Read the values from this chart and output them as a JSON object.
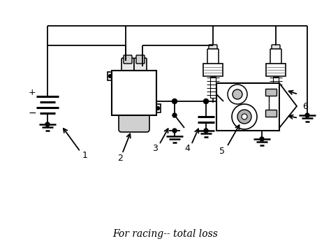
{
  "title": "For racing-- total loss",
  "title_fontsize": 10,
  "bg_color": "#ffffff",
  "line_color": "#000000",
  "fig_width": 4.74,
  "fig_height": 3.55,
  "dpi": 100
}
